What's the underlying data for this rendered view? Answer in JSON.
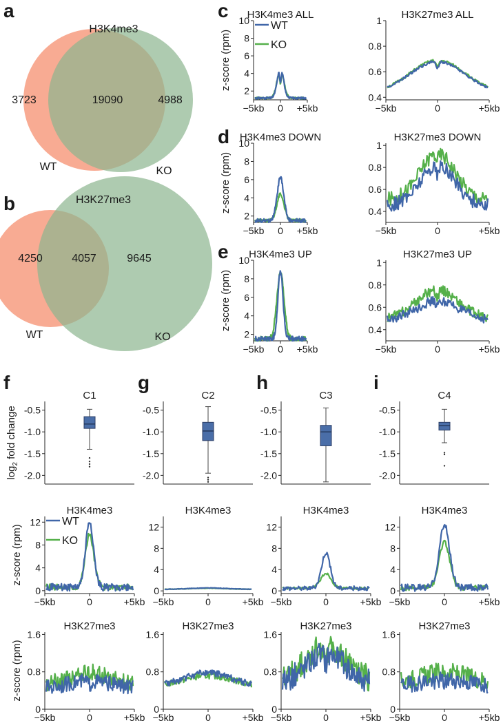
{
  "panel_letters": [
    "a",
    "b",
    "c",
    "d",
    "e",
    "f",
    "g",
    "h",
    "i"
  ],
  "legend": {
    "wt": "WT",
    "ko": "KO"
  },
  "colors": {
    "wt": "#4066a8",
    "ko": "#55b04a",
    "venn_wt": "#f79c80",
    "venn_ko": "#8cb58e",
    "box": "#4a6ea8"
  },
  "chart_data": [
    {
      "id": "venn-a",
      "type": "venn",
      "title": "H3K4me3",
      "sets": [
        "WT",
        "KO"
      ],
      "values": {
        "wt_only": 3723,
        "overlap": 19090,
        "ko_only": 4988
      }
    },
    {
      "id": "venn-b",
      "type": "venn",
      "title": "H3K27me3",
      "sets": [
        "WT",
        "KO"
      ],
      "values": {
        "wt_only": 4250,
        "overlap": 4057,
        "ko_only": 9645
      }
    },
    {
      "id": "c1",
      "type": "line",
      "title": "H3K4me3 ALL",
      "ylabel": "z-score (rpm)",
      "ylim": [
        1,
        10
      ],
      "yticks": [
        2,
        4,
        6,
        8,
        10
      ],
      "xticks": [
        "-5kb",
        "0",
        "+5kb"
      ],
      "legend": true,
      "series": [
        {
          "name": "WT",
          "peak": 4.7,
          "base": 1.2,
          "width": 0.12,
          "dip": 0.5,
          "noise": 0.02
        },
        {
          "name": "KO",
          "peak": 4.5,
          "base": 1.2,
          "width": 0.13,
          "dip": 0.5,
          "noise": 0.02
        }
      ]
    },
    {
      "id": "c2",
      "type": "line",
      "title": "H3K27me3 ALL",
      "ylabel": "",
      "ylim": [
        0.38,
        1.0
      ],
      "yticks": [
        0.4,
        0.6,
        0.8,
        1.0
      ],
      "xticks": [
        "-5kb",
        "0",
        "+5kb"
      ],
      "legend": false,
      "series": [
        {
          "name": "WT",
          "peak": 0.68,
          "base": 0.43,
          "width": 0.55,
          "dip": 0.2,
          "noise": 0.006
        },
        {
          "name": "KO",
          "peak": 0.69,
          "base": 0.43,
          "width": 0.55,
          "dip": 0.19,
          "noise": 0.006
        }
      ]
    },
    {
      "id": "d1",
      "type": "line",
      "title": "H3K4me3 DOWN",
      "ylabel": "z-score (rpm)",
      "ylim": [
        1.3,
        10
      ],
      "yticks": [
        2,
        4,
        6,
        8,
        10
      ],
      "xticks": [
        "-5kb",
        "0",
        "+5kb"
      ],
      "legend": false,
      "series": [
        {
          "name": "WT",
          "peak": 6.2,
          "base": 1.5,
          "width": 0.13,
          "dip": 0,
          "noise": 0.03
        },
        {
          "name": "KO",
          "peak": 4.4,
          "base": 1.5,
          "width": 0.14,
          "dip": 0,
          "noise": 0.03
        }
      ]
    },
    {
      "id": "d2",
      "type": "line",
      "title": "H3K27me3 DOWN",
      "ylabel": "",
      "ylim": [
        0.3,
        1.02
      ],
      "yticks": [
        0.4,
        0.6,
        0.8,
        1.0
      ],
      "xticks": [
        "-5kb",
        "0",
        "+5kb"
      ],
      "legend": false,
      "series": [
        {
          "name": "WT",
          "peak": 0.82,
          "base": 0.45,
          "width": 0.35,
          "dip": 0.22,
          "noise": 0.035
        },
        {
          "name": "KO",
          "peak": 0.93,
          "base": 0.5,
          "width": 0.35,
          "dip": 0.12,
          "noise": 0.035
        }
      ]
    },
    {
      "id": "e1",
      "type": "line",
      "title": "H3K4me3 UP",
      "ylabel": "z-score (rpm)",
      "ylim": [
        1.3,
        10
      ],
      "yticks": [
        2,
        4,
        6,
        8,
        10
      ],
      "xticks": [
        "-5kb",
        "0",
        "+5kb"
      ],
      "legend": false,
      "series": [
        {
          "name": "WT",
          "peak": 8.9,
          "base": 1.5,
          "width": 0.1,
          "dip": 0,
          "noise": 0.03
        },
        {
          "name": "KO",
          "peak": 8.7,
          "base": 1.5,
          "width": 0.14,
          "dip": 0,
          "noise": 0.03
        }
      ]
    },
    {
      "id": "e2",
      "type": "line",
      "title": "H3K27me3 UP",
      "ylabel": "",
      "ylim": [
        0.3,
        1.02
      ],
      "yticks": [
        0.4,
        0.6,
        0.8,
        1.0
      ],
      "xticks": [
        "-5kb",
        "0",
        "+5kb"
      ],
      "legend": false,
      "series": [
        {
          "name": "WT",
          "peak": 0.66,
          "base": 0.49,
          "width": 0.4,
          "dip": 0.3,
          "noise": 0.025
        },
        {
          "name": "KO",
          "peak": 0.76,
          "base": 0.5,
          "width": 0.4,
          "dip": 0.28,
          "noise": 0.025
        }
      ]
    },
    {
      "id": "f-box",
      "type": "box",
      "title": "C1",
      "ylabel": "log2 fold change",
      "ylim": [
        -2.2,
        -0.3
      ],
      "yticks": [
        -0.5,
        -1.0,
        -1.5,
        -2.0
      ],
      "ytick_labels": [
        "-0.5",
        "-1.0",
        "-1.5",
        "-2.0"
      ],
      "box": {
        "whisker_high": -0.48,
        "q3": -0.65,
        "median": -0.82,
        "q1": -0.92,
        "whisker_low": -1.4,
        "outliers": [
          -1.6,
          -1.68,
          -1.74,
          -1.8
        ]
      }
    },
    {
      "id": "g-box",
      "type": "box",
      "title": "C2",
      "ylabel": "",
      "ylim": [
        -2.2,
        -0.3
      ],
      "yticks": [
        -0.5,
        -1.0,
        -1.5,
        -2.0
      ],
      "ytick_labels": [
        "-0.5",
        "-1.0",
        "-1.5",
        "-2.0"
      ],
      "box": {
        "whisker_high": -0.42,
        "q3": -0.78,
        "median": -0.98,
        "q1": -1.2,
        "whisker_low": -1.95,
        "outliers": [
          -2.05,
          -2.1,
          -2.15
        ]
      }
    },
    {
      "id": "h-box",
      "type": "box",
      "title": "C3",
      "ylabel": "",
      "ylim": [
        -2.2,
        -0.3
      ],
      "yticks": [
        -0.5,
        -1.0,
        -1.5,
        -2.0
      ],
      "ytick_labels": [
        "-0.5",
        "-1.0",
        "-1.5",
        "-2.0"
      ],
      "box": {
        "whisker_high": -0.45,
        "q3": -0.85,
        "median": -1.0,
        "q1": -1.32,
        "whisker_low": -2.15,
        "outliers": []
      }
    },
    {
      "id": "i-box",
      "type": "box",
      "title": "C4",
      "ylabel": "",
      "ylim": [
        -2.2,
        -0.3
      ],
      "yticks": [
        -0.5,
        -1.0,
        -1.5,
        -2.0
      ],
      "ytick_labels": [
        "-0.5",
        "-1.0",
        "-1.5",
        "-2.0"
      ],
      "box": {
        "whisker_high": -0.48,
        "q3": -0.78,
        "median": -0.86,
        "q1": -0.96,
        "whisker_low": -1.25,
        "outliers": [
          -1.48,
          -1.52,
          -1.78
        ]
      }
    },
    {
      "id": "f-k4",
      "type": "line",
      "title": "H3K4me3",
      "ylabel": "z-score (rpm)",
      "ylim": [
        -0.5,
        13
      ],
      "yticks": [
        0,
        4,
        8,
        12
      ],
      "xticks": [
        "-5kb",
        "0",
        "+5kb"
      ],
      "legend": true,
      "series": [
        {
          "name": "WT",
          "peak": 12.2,
          "base": 0.6,
          "width": 0.09,
          "dip": 0,
          "noise": 0.05
        },
        {
          "name": "KO",
          "peak": 9.8,
          "base": 0.6,
          "width": 0.1,
          "dip": 0,
          "noise": 0.05
        }
      ]
    },
    {
      "id": "g-k4",
      "type": "line",
      "title": "H3K4me3",
      "ylabel": "",
      "ylim": [
        -0.5,
        14
      ],
      "yticks": [
        0,
        4,
        8,
        12
      ],
      "xticks": [
        "-5kb",
        "0",
        "+5kb"
      ],
      "legend": false,
      "series": [
        {
          "name": "WT",
          "peak": 0.55,
          "base": 0.3,
          "width": 0.4,
          "dip": 0,
          "noise": 0.03
        },
        {
          "name": "KO",
          "peak": 0.5,
          "base": 0.3,
          "width": 0.4,
          "dip": 0,
          "noise": 0.03
        }
      ]
    },
    {
      "id": "h-k4",
      "type": "line",
      "title": "H3K4me3",
      "ylabel": "",
      "ylim": [
        -0.5,
        14
      ],
      "yticks": [
        0,
        4,
        8,
        12
      ],
      "xticks": [
        "-5kb",
        "0",
        "+5kb"
      ],
      "legend": false,
      "series": [
        {
          "name": "WT",
          "peak": 7.2,
          "base": 0.5,
          "width": 0.1,
          "dip": 0,
          "noise": 0.05
        },
        {
          "name": "KO",
          "peak": 3.3,
          "base": 0.5,
          "width": 0.12,
          "dip": 0,
          "noise": 0.05
        }
      ]
    },
    {
      "id": "i-k4",
      "type": "line",
      "title": "H3K4me3",
      "ylabel": "",
      "ylim": [
        -0.5,
        14
      ],
      "yticks": [
        0,
        4,
        8,
        12
      ],
      "xticks": [
        "-5kb",
        "0",
        "+5kb"
      ],
      "legend": false,
      "series": [
        {
          "name": "WT",
          "peak": 12.3,
          "base": 0.6,
          "width": 0.12,
          "dip": 0,
          "noise": 0.05
        },
        {
          "name": "KO",
          "peak": 9.2,
          "base": 0.6,
          "width": 0.12,
          "dip": 0,
          "noise": 0.05
        }
      ]
    },
    {
      "id": "f-k27",
      "type": "line",
      "title": "H3K27me3",
      "ylabel": "z-score (rpm)",
      "ylim": [
        0,
        1.65
      ],
      "yticks": [
        0,
        0.8,
        1.6
      ],
      "ytick_labels": [
        "0",
        "0.8",
        "1.6"
      ],
      "xticks": [
        "-5kb",
        "0",
        "+5kb"
      ],
      "legend": false,
      "series": [
        {
          "name": "WT",
          "peak": 0.6,
          "base": 0.45,
          "width": 0.5,
          "dip": 0.55,
          "noise": 0.1
        },
        {
          "name": "KO",
          "peak": 0.8,
          "base": 0.55,
          "width": 0.4,
          "dip": 0.25,
          "noise": 0.1
        }
      ]
    },
    {
      "id": "g-k27",
      "type": "line",
      "title": "H3K27me3",
      "ylabel": "",
      "ylim": [
        0,
        1.65
      ],
      "yticks": [
        0,
        0.8,
        1.6
      ],
      "ytick_labels": [
        "0",
        "0.8",
        "1.6"
      ],
      "xticks": [
        "-5kb",
        "0",
        "+5kb"
      ],
      "legend": false,
      "series": [
        {
          "name": "WT",
          "peak": 0.78,
          "base": 0.45,
          "width": 0.6,
          "dip": 0,
          "noise": 0.04
        },
        {
          "name": "KO",
          "peak": 0.72,
          "base": 0.47,
          "width": 0.6,
          "dip": 0,
          "noise": 0.04
        }
      ]
    },
    {
      "id": "h-k27",
      "type": "line",
      "title": "H3K27me3",
      "ylabel": "",
      "ylim": [
        0,
        1.65
      ],
      "yticks": [
        0,
        0.8,
        1.6
      ],
      "ytick_labels": [
        "0",
        "0.8",
        "1.6"
      ],
      "xticks": [
        "-5kb",
        "0",
        "+5kb"
      ],
      "legend": false,
      "series": [
        {
          "name": "WT",
          "peak": 1.2,
          "base": 0.55,
          "width": 0.45,
          "dip": 0.3,
          "noise": 0.12
        },
        {
          "name": "KO",
          "peak": 1.35,
          "base": 0.6,
          "width": 0.45,
          "dip": 0.25,
          "noise": 0.12
        }
      ]
    },
    {
      "id": "i-k27",
      "type": "line",
      "title": "H3K27me3",
      "ylabel": "",
      "ylim": [
        0,
        1.65
      ],
      "yticks": [
        0,
        0.8,
        1.6
      ],
      "ytick_labels": [
        "0",
        "0.8",
        "1.6"
      ],
      "xticks": [
        "-5kb",
        "0",
        "+5kb"
      ],
      "legend": false,
      "series": [
        {
          "name": "WT",
          "peak": 0.62,
          "base": 0.5,
          "width": 0.5,
          "dip": 0.55,
          "noise": 0.11
        },
        {
          "name": "KO",
          "peak": 0.8,
          "base": 0.6,
          "width": 0.45,
          "dip": 0.3,
          "noise": 0.11
        }
      ]
    }
  ]
}
